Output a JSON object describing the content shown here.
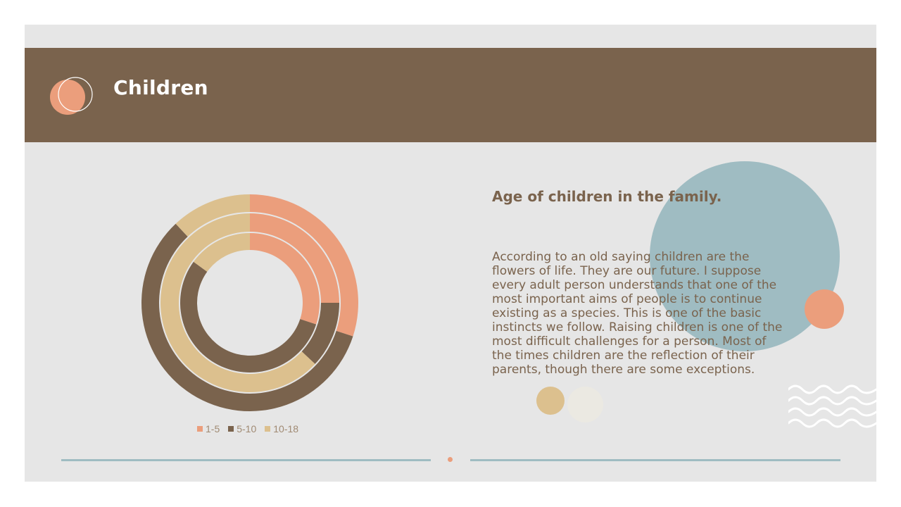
{
  "slide": {
    "title": "Children",
    "subtitle": "Age of children in the family.",
    "body": "According to an old saying children are the flowers of life. They are our future. I suppose every adult person understands that one of the most important aims of people is to continue existing as a species. This is one of the basic instincts we follow. Raising children is one of the most difficult challenges for a person. Most of the times children are the reflection of their parents, though there are some exceptions."
  },
  "colors": {
    "brown": "#7a634d",
    "salmon": "#eb9e7c",
    "sand": "#dcc08e",
    "blue": "#9fbcc2",
    "background": "#e6e6e6"
  },
  "icons": {
    "logo": "overlapping-circles-icon",
    "waves": "wave-lines-icon"
  },
  "chart_data": {
    "type": "donut",
    "categories": [
      "1-5",
      "5-10",
      "10-18"
    ],
    "series": [
      {
        "ring": "outer",
        "values": [
          30,
          58,
          12
        ]
      },
      {
        "ring": "middle",
        "values": [
          25,
          12,
          63
        ]
      },
      {
        "ring": "inner",
        "values": [
          30,
          55,
          15
        ]
      }
    ],
    "legend": {
      "position": "bottom",
      "labels": [
        "1-5",
        "5-10",
        "10-18"
      ]
    }
  }
}
